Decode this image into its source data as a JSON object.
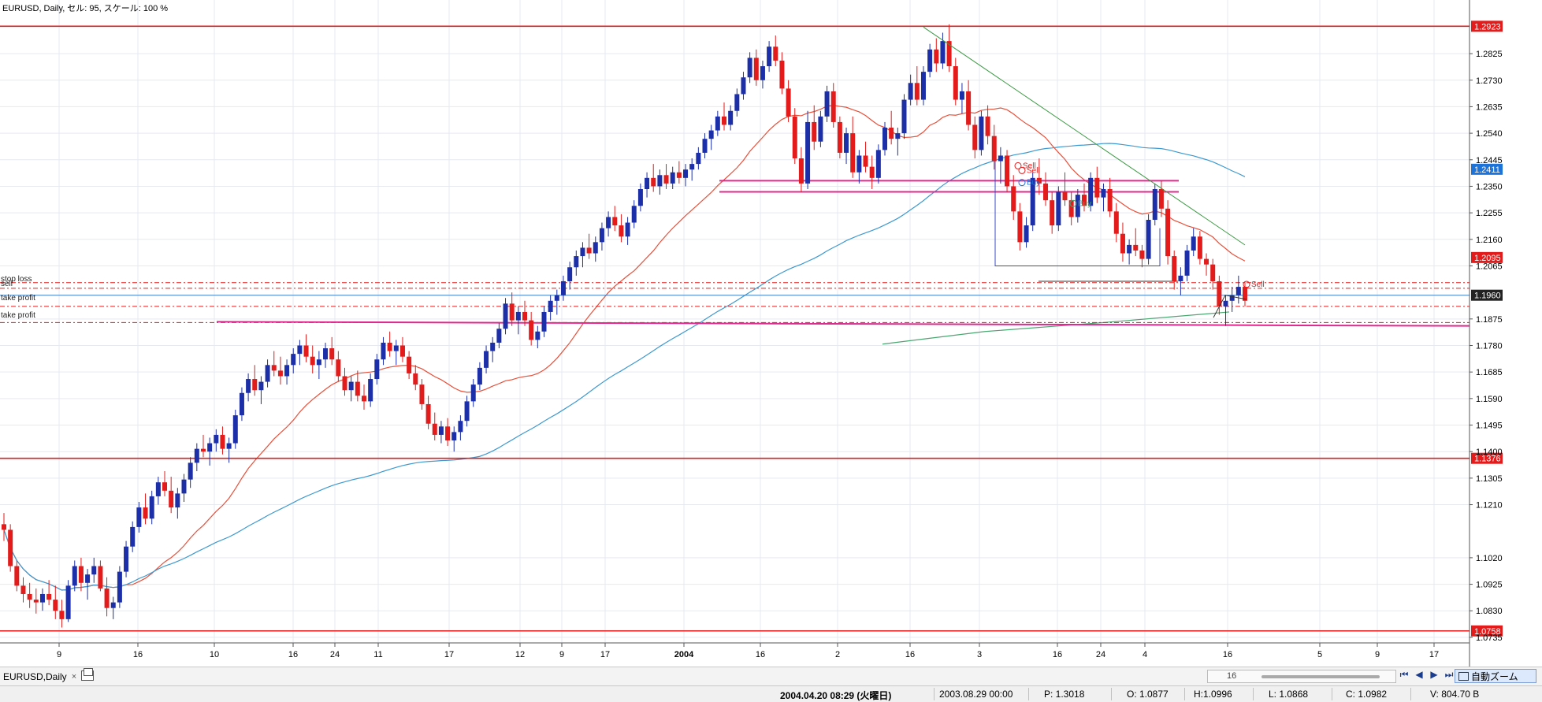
{
  "chart_header": "EURUSD, Daily, セル: 95, スケール: 100 %",
  "chart_data": {
    "type": "candlestick",
    "symbol": "EURUSD",
    "timeframe": "Daily",
    "y_ticks": [
      "1.2825",
      "1.2730",
      "1.2635",
      "1.2540",
      "1.2445",
      "1.2350",
      "1.2255",
      "1.2160",
      "1.2065",
      "1.1875",
      "1.1780",
      "1.1685",
      "1.1590",
      "1.1495",
      "1.1400",
      "1.1305",
      "1.1210",
      "1.1020",
      "1.0925",
      "1.0830",
      "1.0735"
    ],
    "x_ticks": [
      "9",
      "16",
      "10",
      "16",
      "24",
      "11",
      "17",
      "12",
      "9",
      "17",
      "2004",
      "16",
      "2",
      "16",
      "3",
      "16",
      "24",
      "4",
      "16",
      "5",
      "9",
      "17"
    ],
    "ylim": [
      1.0715,
      1.2955
    ],
    "horizontal_lines": [
      {
        "price": 1.2923,
        "label": "1.2923",
        "color": "#e31b1b"
      },
      {
        "price": 1.1376,
        "label": "1.1376",
        "color": "#e31b1b"
      },
      {
        "price": 1.0758,
        "label": "1.0758",
        "color": "#e31b1b"
      }
    ],
    "price_tags": [
      {
        "price": 1.2411,
        "label": "1.2411",
        "color": "#1e73d8"
      },
      {
        "price": 1.2095,
        "label": "1.2095",
        "color": "#e31b1b"
      },
      {
        "price": 1.196,
        "label": "1.1960",
        "color": "#222222"
      }
    ],
    "order_labels": [
      "stop loss",
      "sell",
      "take profit",
      "take profit"
    ],
    "trade_marks": [
      "Sell",
      "Sell",
      "Buy",
      "Buy",
      "Sell"
    ],
    "candles_summary": "Approx. 250 daily candles, EURUSD, rising from ~1.08 to ~1.29 peak then declining to ~1.19",
    "candles": [
      [
        1.114,
        1.118,
        1.108,
        1.112
      ],
      [
        1.112,
        1.114,
        1.097,
        1.099
      ],
      [
        1.099,
        1.101,
        1.09,
        1.092
      ],
      [
        1.092,
        1.095,
        1.086,
        1.089
      ],
      [
        1.089,
        1.093,
        1.084,
        1.087
      ],
      [
        1.087,
        1.091,
        1.082,
        1.086
      ],
      [
        1.086,
        1.091,
        1.083,
        1.089
      ],
      [
        1.089,
        1.094,
        1.085,
        1.087
      ],
      [
        1.087,
        1.092,
        1.08,
        1.083
      ],
      [
        1.083,
        1.087,
        1.077,
        1.08
      ],
      [
        1.08,
        1.094,
        1.079,
        1.092
      ],
      [
        1.092,
        1.101,
        1.09,
        1.099
      ],
      [
        1.099,
        1.102,
        1.09,
        1.093
      ],
      [
        1.093,
        1.098,
        1.087,
        1.096
      ],
      [
        1.096,
        1.102,
        1.093,
        1.099
      ],
      [
        1.099,
        1.101,
        1.09,
        1.091
      ],
      [
        1.091,
        1.095,
        1.081,
        1.084
      ],
      [
        1.084,
        1.088,
        1.08,
        1.086
      ],
      [
        1.086,
        1.099,
        1.084,
        1.097
      ],
      [
        1.097,
        1.108,
        1.095,
        1.106
      ],
      [
        1.106,
        1.115,
        1.104,
        1.113
      ],
      [
        1.113,
        1.122,
        1.111,
        1.12
      ],
      [
        1.12,
        1.125,
        1.114,
        1.116
      ],
      [
        1.116,
        1.126,
        1.114,
        1.124
      ],
      [
        1.124,
        1.131,
        1.121,
        1.129
      ],
      [
        1.129,
        1.133,
        1.124,
        1.126
      ],
      [
        1.126,
        1.131,
        1.118,
        1.12
      ],
      [
        1.12,
        1.127,
        1.116,
        1.125
      ],
      [
        1.125,
        1.132,
        1.122,
        1.13
      ],
      [
        1.13,
        1.138,
        1.127,
        1.136
      ],
      [
        1.136,
        1.143,
        1.133,
        1.141
      ],
      [
        1.141,
        1.146,
        1.138,
        1.14
      ],
      [
        1.14,
        1.145,
        1.135,
        1.143
      ],
      [
        1.143,
        1.148,
        1.14,
        1.146
      ],
      [
        1.146,
        1.149,
        1.139,
        1.141
      ],
      [
        1.141,
        1.145,
        1.136,
        1.143
      ],
      [
        1.143,
        1.155,
        1.141,
        1.153
      ],
      [
        1.153,
        1.163,
        1.151,
        1.161
      ],
      [
        1.161,
        1.168,
        1.158,
        1.166
      ],
      [
        1.166,
        1.171,
        1.16,
        1.162
      ],
      [
        1.162,
        1.167,
        1.157,
        1.165
      ],
      [
        1.165,
        1.173,
        1.163,
        1.171
      ],
      [
        1.171,
        1.176,
        1.167,
        1.169
      ],
      [
        1.169,
        1.174,
        1.164,
        1.167
      ],
      [
        1.167,
        1.173,
        1.164,
        1.171
      ],
      [
        1.171,
        1.177,
        1.168,
        1.175
      ],
      [
        1.175,
        1.18,
        1.171,
        1.178
      ],
      [
        1.178,
        1.182,
        1.172,
        1.174
      ],
      [
        1.174,
        1.178,
        1.168,
        1.171
      ],
      [
        1.171,
        1.176,
        1.166,
        1.173
      ],
      [
        1.173,
        1.179,
        1.17,
        1.177
      ],
      [
        1.177,
        1.181,
        1.171,
        1.173
      ],
      [
        1.173,
        1.176,
        1.165,
        1.167
      ],
      [
        1.167,
        1.17,
        1.16,
        1.162
      ],
      [
        1.162,
        1.167,
        1.158,
        1.165
      ],
      [
        1.165,
        1.169,
        1.158,
        1.16
      ],
      [
        1.16,
        1.164,
        1.155,
        1.158
      ],
      [
        1.158,
        1.168,
        1.156,
        1.166
      ],
      [
        1.166,
        1.175,
        1.164,
        1.173
      ],
      [
        1.173,
        1.181,
        1.171,
        1.179
      ],
      [
        1.179,
        1.183,
        1.174,
        1.176
      ],
      [
        1.176,
        1.18,
        1.171,
        1.178
      ],
      [
        1.178,
        1.181,
        1.172,
        1.174
      ],
      [
        1.174,
        1.176,
        1.166,
        1.168
      ],
      [
        1.168,
        1.171,
        1.162,
        1.164
      ],
      [
        1.164,
        1.166,
        1.155,
        1.157
      ],
      [
        1.157,
        1.16,
        1.148,
        1.15
      ],
      [
        1.15,
        1.154,
        1.144,
        1.146
      ],
      [
        1.146,
        1.151,
        1.143,
        1.149
      ],
      [
        1.149,
        1.152,
        1.142,
        1.144
      ],
      [
        1.144,
        1.149,
        1.14,
        1.147
      ],
      [
        1.147,
        1.153,
        1.144,
        1.151
      ],
      [
        1.151,
        1.16,
        1.149,
        1.158
      ],
      [
        1.158,
        1.166,
        1.156,
        1.164
      ],
      [
        1.164,
        1.172,
        1.162,
        1.17
      ],
      [
        1.17,
        1.178,
        1.168,
        1.176
      ],
      [
        1.176,
        1.181,
        1.172,
        1.179
      ],
      [
        1.179,
        1.186,
        1.177,
        1.184
      ],
      [
        1.184,
        1.195,
        1.182,
        1.193
      ],
      [
        1.193,
        1.197,
        1.185,
        1.187
      ],
      [
        1.187,
        1.192,
        1.182,
        1.19
      ],
      [
        1.19,
        1.194,
        1.185,
        1.187
      ],
      [
        1.187,
        1.19,
        1.178,
        1.18
      ],
      [
        1.18,
        1.185,
        1.177,
        1.183
      ],
      [
        1.183,
        1.192,
        1.181,
        1.19
      ],
      [
        1.19,
        1.196,
        1.187,
        1.194
      ],
      [
        1.194,
        1.198,
        1.189,
        1.196
      ],
      [
        1.196,
        1.203,
        1.194,
        1.201
      ],
      [
        1.201,
        1.208,
        1.198,
        1.206
      ],
      [
        1.206,
        1.212,
        1.203,
        1.21
      ],
      [
        1.21,
        1.215,
        1.206,
        1.213
      ],
      [
        1.213,
        1.218,
        1.209,
        1.211
      ],
      [
        1.211,
        1.217,
        1.208,
        1.215
      ],
      [
        1.215,
        1.222,
        1.212,
        1.22
      ],
      [
        1.22,
        1.226,
        1.217,
        1.224
      ],
      [
        1.224,
        1.228,
        1.219,
        1.221
      ],
      [
        1.221,
        1.225,
        1.215,
        1.217
      ],
      [
        1.217,
        1.224,
        1.214,
        1.222
      ],
      [
        1.222,
        1.23,
        1.22,
        1.228
      ],
      [
        1.228,
        1.236,
        1.226,
        1.234
      ],
      [
        1.234,
        1.24,
        1.231,
        1.238
      ],
      [
        1.238,
        1.243,
        1.233,
        1.235
      ],
      [
        1.235,
        1.241,
        1.232,
        1.239
      ],
      [
        1.239,
        1.243,
        1.234,
        1.236
      ],
      [
        1.236,
        1.242,
        1.234,
        1.24
      ],
      [
        1.24,
        1.244,
        1.236,
        1.238
      ],
      [
        1.238,
        1.243,
        1.235,
        1.241
      ],
      [
        1.241,
        1.245,
        1.237,
        1.243
      ],
      [
        1.243,
        1.249,
        1.241,
        1.247
      ],
      [
        1.247,
        1.254,
        1.245,
        1.252
      ],
      [
        1.252,
        1.257,
        1.248,
        1.255
      ],
      [
        1.255,
        1.262,
        1.253,
        1.26
      ],
      [
        1.26,
        1.265,
        1.255,
        1.257
      ],
      [
        1.257,
        1.264,
        1.255,
        1.262
      ],
      [
        1.262,
        1.27,
        1.26,
        1.268
      ],
      [
        1.268,
        1.276,
        1.266,
        1.274
      ],
      [
        1.274,
        1.283,
        1.272,
        1.281
      ],
      [
        1.281,
        1.284,
        1.271,
        1.273
      ],
      [
        1.273,
        1.28,
        1.27,
        1.278
      ],
      [
        1.278,
        1.287,
        1.276,
        1.285
      ],
      [
        1.285,
        1.289,
        1.278,
        1.28
      ],
      [
        1.28,
        1.283,
        1.268,
        1.27
      ],
      [
        1.27,
        1.273,
        1.258,
        1.26
      ],
      [
        1.26,
        1.263,
        1.243,
        1.245
      ],
      [
        1.245,
        1.249,
        1.233,
        1.236
      ],
      [
        1.236,
        1.262,
        1.234,
        1.258
      ],
      [
        1.258,
        1.264,
        1.248,
        1.251
      ],
      [
        1.251,
        1.262,
        1.249,
        1.26
      ],
      [
        1.26,
        1.271,
        1.258,
        1.269
      ],
      [
        1.269,
        1.272,
        1.256,
        1.258
      ],
      [
        1.258,
        1.26,
        1.245,
        1.247
      ],
      [
        1.247,
        1.256,
        1.243,
        1.254
      ],
      [
        1.254,
        1.26,
        1.238,
        1.24
      ],
      [
        1.24,
        1.248,
        1.236,
        1.246
      ],
      [
        1.246,
        1.251,
        1.24,
        1.242
      ],
      [
        1.242,
        1.246,
        1.234,
        1.238
      ],
      [
        1.238,
        1.25,
        1.236,
        1.248
      ],
      [
        1.248,
        1.258,
        1.246,
        1.256
      ],
      [
        1.256,
        1.262,
        1.25,
        1.252
      ],
      [
        1.252,
        1.256,
        1.246,
        1.254
      ],
      [
        1.254,
        1.268,
        1.252,
        1.266
      ],
      [
        1.266,
        1.275,
        1.264,
        1.272
      ],
      [
        1.272,
        1.278,
        1.264,
        1.266
      ],
      [
        1.266,
        1.278,
        1.264,
        1.276
      ],
      [
        1.276,
        1.286,
        1.274,
        1.284
      ],
      [
        1.284,
        1.288,
        1.276,
        1.279
      ],
      [
        1.279,
        1.29,
        1.277,
        1.287
      ],
      [
        1.287,
        1.293,
        1.276,
        1.278
      ],
      [
        1.278,
        1.281,
        1.264,
        1.266
      ],
      [
        1.266,
        1.272,
        1.261,
        1.269
      ],
      [
        1.269,
        1.273,
        1.255,
        1.257
      ],
      [
        1.257,
        1.26,
        1.245,
        1.248
      ],
      [
        1.248,
        1.262,
        1.246,
        1.26
      ],
      [
        1.26,
        1.264,
        1.25,
        1.253
      ],
      [
        1.253,
        1.257,
        1.241,
        1.244
      ],
      [
        1.244,
        1.249,
        1.236,
        1.246
      ],
      [
        1.246,
        1.248,
        1.233,
        1.235
      ],
      [
        1.235,
        1.239,
        1.223,
        1.226
      ],
      [
        1.226,
        1.229,
        1.212,
        1.215
      ],
      [
        1.215,
        1.224,
        1.213,
        1.221
      ],
      [
        1.221,
        1.24,
        1.219,
        1.238
      ],
      [
        1.238,
        1.245,
        1.232,
        1.236
      ],
      [
        1.236,
        1.24,
        1.228,
        1.23
      ],
      [
        1.23,
        1.233,
        1.218,
        1.221
      ],
      [
        1.221,
        1.235,
        1.219,
        1.233
      ],
      [
        1.233,
        1.24,
        1.228,
        1.23
      ],
      [
        1.23,
        1.233,
        1.221,
        1.224
      ],
      [
        1.224,
        1.234,
        1.222,
        1.232
      ],
      [
        1.232,
        1.236,
        1.226,
        1.228
      ],
      [
        1.228,
        1.24,
        1.226,
        1.238
      ],
      [
        1.238,
        1.242,
        1.229,
        1.231
      ],
      [
        1.231,
        1.236,
        1.226,
        1.234
      ],
      [
        1.234,
        1.238,
        1.224,
        1.226
      ],
      [
        1.226,
        1.229,
        1.215,
        1.218
      ],
      [
        1.218,
        1.222,
        1.208,
        1.211
      ],
      [
        1.211,
        1.216,
        1.207,
        1.214
      ],
      [
        1.214,
        1.22,
        1.21,
        1.212
      ],
      [
        1.212,
        1.214,
        1.206,
        1.209
      ],
      [
        1.209,
        1.225,
        1.207,
        1.223
      ],
      [
        1.223,
        1.236,
        1.221,
        1.234
      ],
      [
        1.234,
        1.237,
        1.224,
        1.227
      ],
      [
        1.227,
        1.23,
        1.207,
        1.21
      ],
      [
        1.21,
        1.212,
        1.198,
        1.201
      ],
      [
        1.201,
        1.206,
        1.196,
        1.203
      ],
      [
        1.203,
        1.214,
        1.201,
        1.212
      ],
      [
        1.212,
        1.22,
        1.21,
        1.217
      ],
      [
        1.217,
        1.219,
        1.207,
        1.209
      ],
      [
        1.209,
        1.211,
        1.203,
        1.207
      ],
      [
        1.207,
        1.209,
        1.198,
        1.201
      ],
      [
        1.201,
        1.203,
        1.189,
        1.192
      ],
      [
        1.192,
        1.196,
        1.185,
        1.194
      ],
      [
        1.194,
        1.199,
        1.19,
        1.196
      ],
      [
        1.196,
        1.203,
        1.193,
        1.199
      ],
      [
        1.199,
        1.201,
        1.192,
        1.194
      ]
    ],
    "candle_start_x": 5,
    "candle_step": 6.0
  },
  "tab": {
    "label": "EURUSD,Daily",
    "close": "×"
  },
  "toolbar": {
    "autozoom_label": "自動ズーム",
    "scroll_label": "16"
  },
  "status": {
    "time": "2004.04.20 08:29 (火曜日)",
    "datetime": "2003.08.29 00:00",
    "p": "P: 1.3018",
    "o": "O: 1.0877",
    "h": "H:1.0996",
    "l": "L: 1.0868",
    "c": "C: 1.0982",
    "v": "V: 804.70 B"
  },
  "colors": {
    "bull": "#1c2fa8",
    "bear": "#e31b1b",
    "ma_fast": "#e8503a",
    "ma_slow": "#3d9ad1",
    "ma_long": "#49a670",
    "grid": "#e6e9f0",
    "level_magenta": "#e0288f"
  }
}
